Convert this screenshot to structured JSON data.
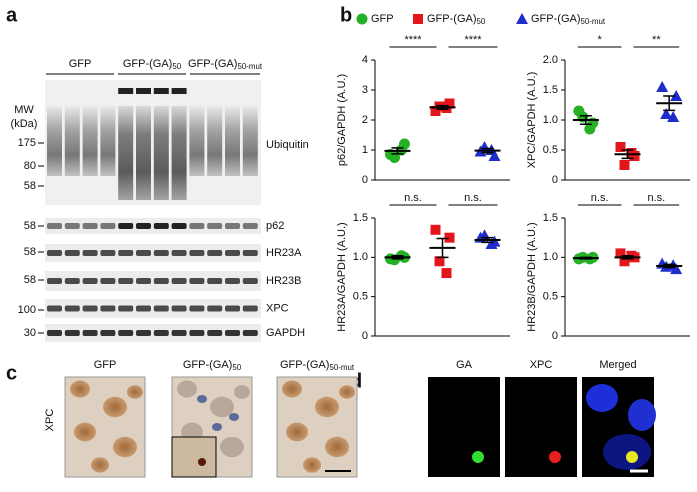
{
  "panel_a": {
    "label": "a",
    "groups": [
      "GFP",
      "GFP-(GA)50",
      "GFP-(GA)50-mut"
    ],
    "mw_title": [
      "MW",
      "(kDa)"
    ],
    "ubiquitin": {
      "name": "Ubiquitin",
      "mw": [
        "175",
        "80",
        "58"
      ]
    },
    "blots": [
      {
        "name": "p62",
        "mw": "58"
      },
      {
        "name": "HR23A",
        "mw": "58"
      },
      {
        "name": "HR23B",
        "mw": "58"
      },
      {
        "name": "XPC",
        "mw": "100"
      },
      {
        "name": "GAPDH",
        "mw": "30"
      }
    ]
  },
  "panel_b": {
    "label": "b"
  },
  "panel_c": {
    "label": "c",
    "titles": [
      "GFP",
      "GFP-(GA)50",
      "GFP-(GA)50-mut"
    ],
    "row_label": "XPC"
  },
  "panel_d": {
    "label": "d",
    "titles": [
      "GA",
      "XPC",
      "Merged"
    ]
  },
  "chart_data": [
    {
      "type": "scatter",
      "y_label": "p62/GAPDH (A.U.)",
      "ylim": [
        0,
        4
      ],
      "yticks": [
        0,
        1,
        2,
        3,
        4
      ],
      "significance": [
        "****",
        "****"
      ],
      "legend": "top",
      "series": [
        {
          "name": "GFP",
          "color": "#25b025",
          "marker": "circle",
          "values": [
            0.85,
            1.2,
            0.75,
            1.0
          ],
          "mean": 0.97,
          "sem": 0.1
        },
        {
          "name": "GFP-(GA)50",
          "color": "#e3161c",
          "marker": "square",
          "values": [
            2.3,
            2.55,
            2.45,
            2.4
          ],
          "mean": 2.42,
          "sem": 0.06
        },
        {
          "name": "GFP-(GA)50-mut",
          "color": "#1f2ccc",
          "marker": "triangle",
          "values": [
            0.95,
            0.8,
            1.1,
            1.0
          ],
          "mean": 0.98,
          "sem": 0.07
        }
      ]
    },
    {
      "type": "scatter",
      "y_label": "XPC/GAPDH (A.U.)",
      "ylim": [
        0,
        2
      ],
      "yticks": [
        0,
        0.5,
        {
          "value": 1,
          "label": "1.0"
        },
        1.5,
        {
          "value": 2,
          "label": "2.0"
        }
      ],
      "significance": [
        "*",
        "**"
      ],
      "series": [
        {
          "color": "#25b025",
          "marker": "circle",
          "values": [
            1.15,
            0.95,
            1.05,
            0.85
          ],
          "mean": 1.0,
          "sem": 0.07
        },
        {
          "color": "#e3161c",
          "marker": "square",
          "values": [
            0.55,
            0.4,
            0.25,
            0.45
          ],
          "mean": 0.43,
          "sem": 0.07
        },
        {
          "color": "#1f2ccc",
          "marker": "triangle",
          "values": [
            1.55,
            1.4,
            1.1,
            1.05
          ],
          "mean": 1.28,
          "sem": 0.12
        }
      ]
    },
    {
      "type": "scatter",
      "y_label": "HR23A/GAPDH (A.U.)",
      "ylim": [
        0,
        1.5
      ],
      "yticks": [
        0,
        0.5,
        {
          "value": 1,
          "label": "1.0"
        },
        1.5
      ],
      "significance": [
        "n.s.",
        "n.s."
      ],
      "series": [
        {
          "color": "#25b025",
          "marker": "circle",
          "values": [
            0.98,
            1.0,
            0.97,
            1.02
          ],
          "mean": 1.0,
          "sem": 0.02
        },
        {
          "color": "#e3161c",
          "marker": "square",
          "values": [
            1.35,
            1.25,
            0.95,
            0.8
          ],
          "mean": 1.12,
          "sem": 0.12
        },
        {
          "color": "#1f2ccc",
          "marker": "triangle",
          "values": [
            1.25,
            1.2,
            1.28,
            1.17
          ],
          "mean": 1.22,
          "sem": 0.03
        }
      ]
    },
    {
      "type": "scatter",
      "y_label": "HR23B/GAPDH (A.U.)",
      "ylim": [
        0,
        1.5
      ],
      "yticks": [
        0,
        0.5,
        {
          "value": 1,
          "label": "1.0"
        },
        1.5
      ],
      "significance": [
        "n.s.",
        "n.s."
      ],
      "series": [
        {
          "color": "#25b025",
          "marker": "circle",
          "values": [
            0.98,
            1.0,
            1.0,
            0.98
          ],
          "mean": 0.99,
          "sem": 0.01
        },
        {
          "color": "#e3161c",
          "marker": "square",
          "values": [
            1.05,
            1.0,
            0.95,
            1.02
          ],
          "mean": 1.0,
          "sem": 0.02
        },
        {
          "color": "#1f2ccc",
          "marker": "triangle",
          "values": [
            0.92,
            0.85,
            0.88,
            0.9
          ],
          "mean": 0.89,
          "sem": 0.02
        }
      ]
    }
  ]
}
